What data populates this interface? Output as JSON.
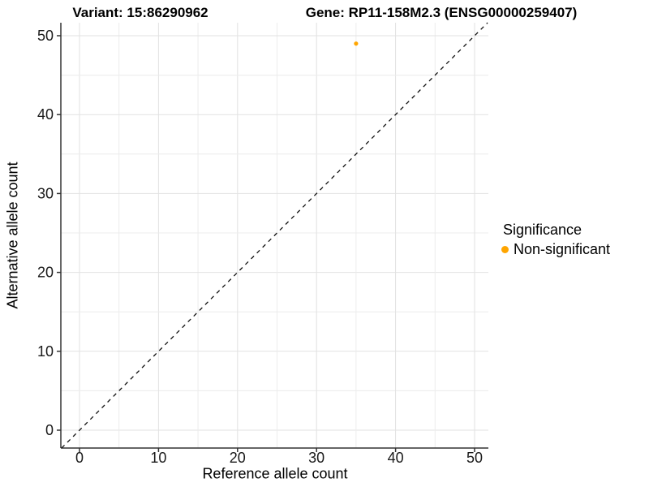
{
  "chart_data": {
    "type": "scatter",
    "title_left": "Variant: 15:86290962",
    "title_right": "Gene: RP11-158M2.3 (ENSG00000259407)",
    "xlabel": "Reference allele count",
    "ylabel": "Alternative allele count",
    "xticks": [
      0,
      10,
      20,
      30,
      40,
      50
    ],
    "yticks": [
      0,
      10,
      20,
      30,
      40,
      50
    ],
    "xlim": [
      -2.4,
      51.7
    ],
    "ylim": [
      -2.3,
      51.7
    ],
    "grid": "on",
    "grid_minor_step": 5,
    "series": [
      {
        "name": "Non-significant",
        "color": "#FFA500",
        "points": [
          {
            "x": 35,
            "y": 49
          }
        ]
      }
    ],
    "reference_line": {
      "type": "identity",
      "slope": 1,
      "intercept": 0,
      "style": "dashed",
      "color": "#111111"
    },
    "legend": {
      "position": "right",
      "title": "Significance",
      "entries": [
        {
          "label": "Non-significant",
          "color": "#FFA500"
        }
      ]
    },
    "colors": {
      "grid_major": "#E2E2E2",
      "grid_minor": "#ECECEC",
      "axis_line": "#333333",
      "tick_label": "#1a1a1a"
    }
  }
}
